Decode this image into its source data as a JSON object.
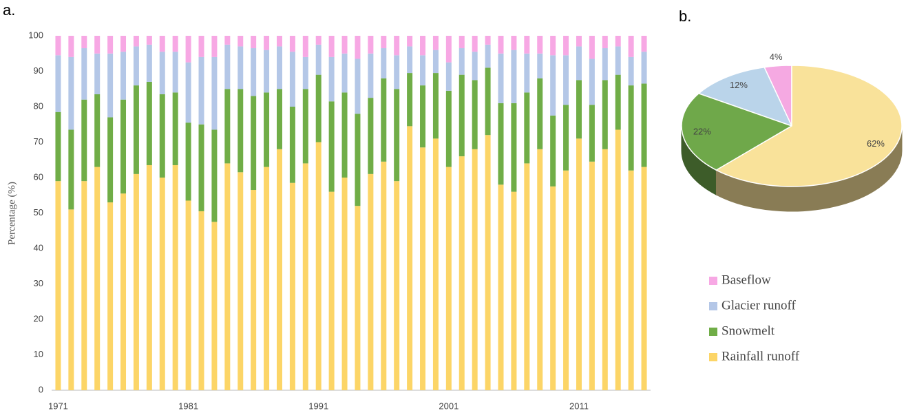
{
  "chart_data": [
    {
      "type": "bar",
      "stacked": true,
      "panel_label": "a.",
      "y_label": "Percentage (%)",
      "categories": [
        "1971",
        null,
        null,
        null,
        null,
        null,
        null,
        null,
        null,
        null,
        "1981",
        null,
        null,
        null,
        null,
        null,
        null,
        null,
        null,
        null,
        "1991",
        null,
        null,
        null,
        null,
        null,
        null,
        null,
        null,
        null,
        "2001",
        null,
        null,
        null,
        null,
        null,
        null,
        null,
        null,
        null,
        "2011",
        null,
        null,
        null,
        null,
        null
      ],
      "series": [
        {
          "name": "Rainfall runoff",
          "color": "#fcd567",
          "values": [
            59,
            51,
            59,
            63,
            53,
            55.5,
            61,
            63.5,
            60,
            63.5,
            53.5,
            50.5,
            47.5,
            64,
            61.5,
            56.5,
            63,
            68,
            58.5,
            64,
            70,
            56,
            60,
            52,
            61,
            64.5,
            59,
            74.5,
            68.5,
            71,
            63,
            66,
            68,
            72,
            58,
            56,
            64,
            68,
            57.5,
            62,
            71,
            64.5,
            68,
            73.5,
            62,
            63
          ]
        },
        {
          "name": "Snowmelt",
          "color": "#70ad47",
          "values": [
            19.5,
            22.5,
            23,
            20.5,
            24,
            26.5,
            25,
            23.5,
            23.5,
            20.5,
            22,
            24.5,
            26,
            21,
            23.5,
            26.5,
            21,
            17,
            21.5,
            21,
            19,
            25.5,
            24,
            26,
            21.5,
            23.5,
            26,
            15,
            17.5,
            18.5,
            21.5,
            23,
            19.5,
            19,
            23,
            25,
            20,
            20,
            20,
            18.5,
            16.5,
            16,
            19.5,
            15.5,
            24,
            23.5
          ]
        },
        {
          "name": "Glacier runoff",
          "color": "#b4c7e7",
          "values": [
            16,
            20.5,
            14.5,
            11.5,
            18,
            13.5,
            11,
            10.5,
            12,
            11.5,
            17,
            19,
            20.5,
            12.5,
            12,
            13.5,
            12,
            12,
            15.5,
            9,
            8.5,
            12.5,
            11,
            15.5,
            12.5,
            8.5,
            9.5,
            7.5,
            8.5,
            6.5,
            8,
            7.5,
            8,
            6.5,
            14,
            15,
            11,
            7,
            17,
            14,
            9.5,
            13,
            9,
            8,
            8,
            9
          ]
        },
        {
          "name": "Baseflow",
          "color": "#f7a8e4",
          "values": [
            5.5,
            6,
            3.5,
            5,
            5,
            4.5,
            3,
            2.5,
            4.5,
            4.5,
            7.5,
            6,
            6,
            2.5,
            3,
            3.5,
            4,
            3,
            4.5,
            6,
            2.5,
            6,
            5,
            6.5,
            5,
            3.5,
            5.5,
            3,
            5.5,
            4,
            7.5,
            3.5,
            4.5,
            2.5,
            5,
            4,
            5,
            5,
            5.5,
            5.5,
            3,
            6.5,
            3.5,
            3,
            6,
            4.5
          ]
        }
      ],
      "ylim": [
        0,
        100
      ],
      "yticks": [
        0,
        10,
        20,
        30,
        40,
        50,
        60,
        70,
        80,
        90,
        100
      ],
      "grid": false
    },
    {
      "type": "pie",
      "panel_label": "b.",
      "values": [
        4,
        12,
        22,
        62
      ],
      "value_labels": [
        "4%",
        "12%",
        "22%",
        "62%"
      ],
      "colors": [
        "#f5a9e2",
        "#bad4ea",
        "#6fa84a",
        "#f9e29a"
      ]
    }
  ]
}
